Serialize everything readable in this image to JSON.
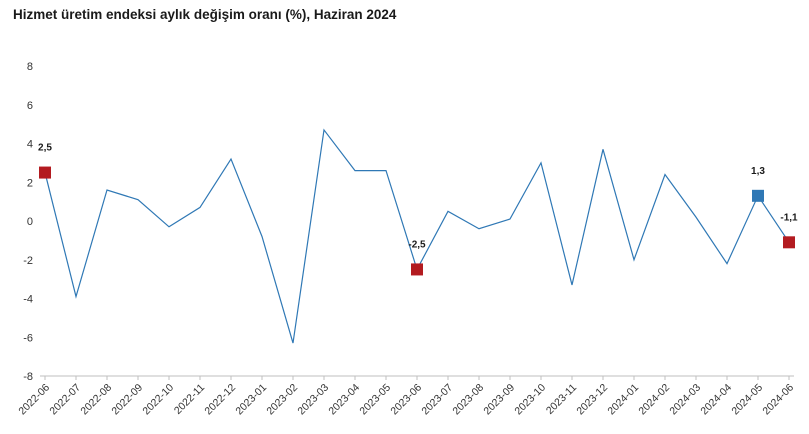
{
  "chart_data": {
    "type": "line",
    "title": "Hizmet üretim endeksi aylık değişim oranı (%), Haziran 2024",
    "xlabel": "",
    "ylabel": "",
    "ylim": [
      -8,
      8
    ],
    "yticks": [
      8,
      6,
      4,
      2,
      0,
      -2,
      -4,
      -6,
      -8
    ],
    "grid": false,
    "legend": "none",
    "categories": [
      "2022-06",
      "2022-07",
      "2022-08",
      "2022-09",
      "2022-10",
      "2022-11",
      "2022-12",
      "2023-01",
      "2023-02",
      "2023-03",
      "2023-04",
      "2023-05",
      "2023-06",
      "2023-07",
      "2023-08",
      "2023-09",
      "2023-10",
      "2023-11",
      "2023-12",
      "2024-01",
      "2024-02",
      "2024-03",
      "2024-04",
      "2024-05",
      "2024-06"
    ],
    "series": [
      {
        "values": [
          2.5,
          -3.9,
          1.6,
          1.1,
          -0.3,
          0.7,
          3.2,
          -0.8,
          -6.3,
          4.7,
          2.6,
          2.6,
          -2.5,
          0.5,
          -0.4,
          0.1,
          3.0,
          -3.3,
          3.7,
          -2.0,
          2.4,
          0.2,
          -2.2,
          1.3,
          -1.1
        ]
      }
    ],
    "highlights": [
      {
        "category": "2022-06",
        "value": 2.5,
        "label": "2,5",
        "color": "#b31b20"
      },
      {
        "category": "2023-06",
        "value": -2.5,
        "label": "-2,5",
        "color": "#b31b20"
      },
      {
        "category": "2024-05",
        "value": 1.3,
        "label": "1,3",
        "color": "#2f78b5"
      },
      {
        "category": "2024-06",
        "value": -1.1,
        "label": "-1,1",
        "color": "#b31b20"
      }
    ],
    "line_color": "#2f78b5",
    "axis_color": "#bfbfbf"
  }
}
